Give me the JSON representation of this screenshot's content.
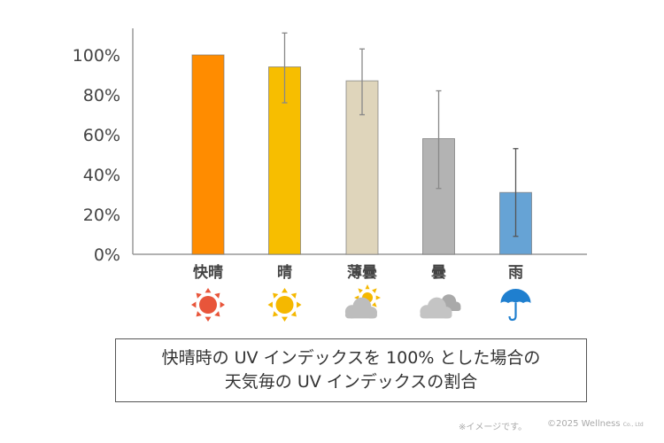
{
  "chart_data": {
    "type": "bar",
    "categories": [
      "快晴",
      "晴",
      "薄曇",
      "曇",
      "雨"
    ],
    "values": [
      100,
      94,
      87,
      58,
      31
    ],
    "error_low": [
      null,
      76,
      70,
      33,
      9
    ],
    "error_high": [
      null,
      111,
      103,
      82,
      53
    ],
    "colors": [
      "#ff8c00",
      "#f7be00",
      "#dfd5bb",
      "#b3b3b3",
      "#66a3d5"
    ],
    "icons": [
      "sun-red-icon",
      "sun-yellow-icon",
      "cloud-sun-icon",
      "clouds-icon",
      "umbrella-icon"
    ],
    "ylim": [
      0,
      100
    ],
    "yticks": [
      "0%",
      "20%",
      "40%",
      "60%",
      "80%",
      "100%"
    ],
    "grid": false
  },
  "caption": {
    "line1": "快晴時の UV インデックスを 100% とした場合の",
    "line2": "天気毎の UV インデックスの割合"
  },
  "footer": {
    "note": "※イメージです。",
    "copyright": "©2025 Wellness",
    "suffix": "Co., Ltd"
  }
}
